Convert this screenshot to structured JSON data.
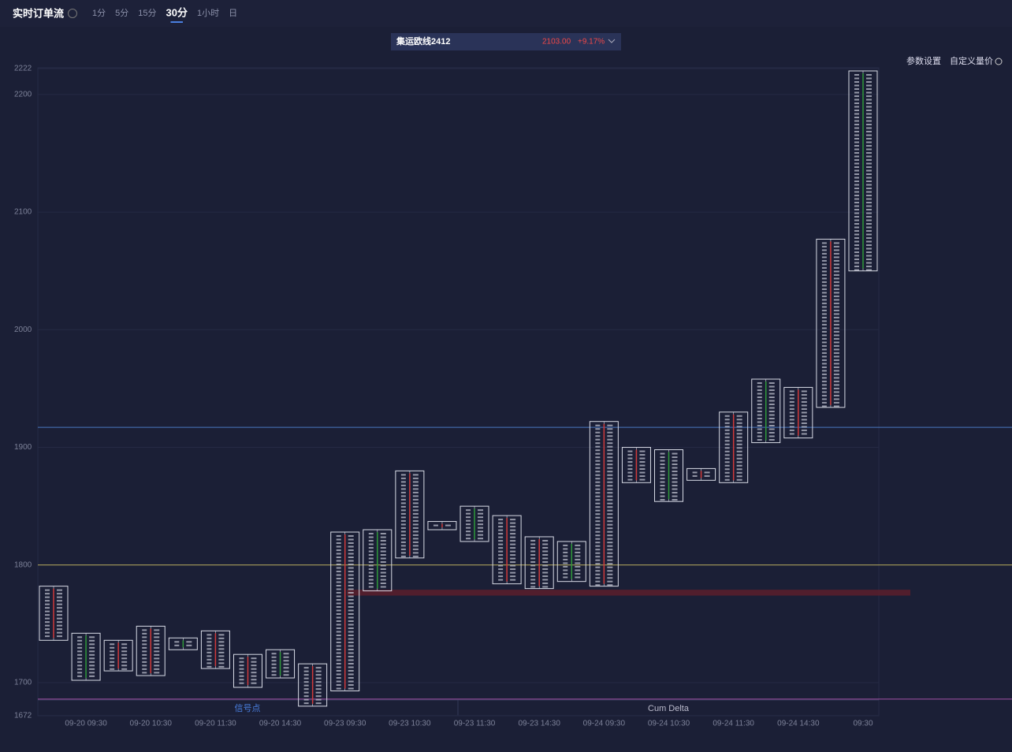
{
  "header": {
    "title": "实时订单流",
    "timeframes": [
      "1分",
      "5分",
      "15分",
      "30分",
      "1小时",
      "日"
    ],
    "active": 3
  },
  "ticker": {
    "name": "集运欧线2412",
    "price": "2103.00",
    "change": "+9.17%"
  },
  "tools": [
    "参数设置",
    "自定义量价"
  ],
  "panels": [
    "信号点",
    "Cum Delta"
  ],
  "chart_data": {
    "type": "candlestick",
    "categories": [
      null,
      "09-20 09:30",
      null,
      "09-20 10:30",
      null,
      "09-20 11:30",
      null,
      "09-20 14:30",
      null,
      "09-23 09:30",
      null,
      "09-23 10:30",
      null,
      "09-23 11:30",
      null,
      "09-23 14:30",
      null,
      "09-24 09:30",
      null,
      "09-24 10:30",
      null,
      "09-24 11:30",
      null,
      "09-24 14:30",
      null,
      "09:30"
    ],
    "high": [
      1782,
      1742,
      1736,
      1748,
      1738,
      1744,
      1724,
      1728,
      1716,
      1828,
      1830,
      1880,
      1837,
      1850,
      1842,
      1824,
      1820,
      1922,
      1900,
      1898,
      1882,
      1930,
      1958,
      1951,
      2077,
      2220
    ],
    "low": [
      1736,
      1702,
      1710,
      1706,
      1728,
      1712,
      1696,
      1704,
      1680,
      1693,
      1778,
      1806,
      1830,
      1820,
      1784,
      1780,
      1786,
      1782,
      1870,
      1854,
      1872,
      1870,
      1904,
      1908,
      1934,
      2050
    ],
    "ylim": [
      1672,
      2222
    ],
    "yticks": [
      1672,
      1700,
      1800,
      1900,
      2000,
      2100,
      2200,
      2222
    ],
    "grid": true,
    "box_color": "#d8dbe6",
    "levels": [
      {
        "value": 1917,
        "color": "#4a78c0"
      },
      {
        "value": 1800,
        "color": "#b9ad5c"
      },
      {
        "value": 1686,
        "color": "#a452a8"
      }
    ],
    "zone": {
      "range": [
        1774,
        1779
      ],
      "color": "#5a1e2c"
    }
  }
}
